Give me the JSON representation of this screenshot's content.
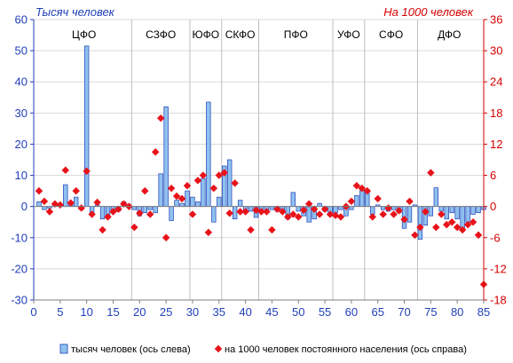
{
  "chart_data": {
    "type": "bar",
    "left_axis_label": "Тысяч человек",
    "right_axis_label": "На 1000 человек",
    "ylim_left": [
      -30,
      60
    ],
    "ylim_right": [
      -18,
      36
    ],
    "yticks_left": [
      "60",
      "50",
      "40",
      "30",
      "20",
      "10",
      "0",
      "-10",
      "-20",
      "-30"
    ],
    "yticks_right": [
      "36",
      "30",
      "24",
      "18",
      "12",
      "6",
      "0",
      "-6",
      "-12",
      "-18"
    ],
    "xticks": [
      "0",
      "5",
      "10",
      "15",
      "20",
      "25",
      "30",
      "35",
      "40",
      "45",
      "50",
      "55",
      "60",
      "65",
      "70",
      "75",
      "80",
      "85"
    ],
    "grid": true,
    "legend_position": "bottom",
    "regions": [
      {
        "name": "ЦФО",
        "start": 1,
        "end": 18
      },
      {
        "name": "СЗФО",
        "start": 19,
        "end": 29
      },
      {
        "name": "ЮФО",
        "start": 30,
        "end": 35
      },
      {
        "name": "СКФО",
        "start": 36,
        "end": 42
      },
      {
        "name": "ПФО",
        "start": 43,
        "end": 56
      },
      {
        "name": "УФО",
        "start": 57,
        "end": 62
      },
      {
        "name": "СФО",
        "start": 63,
        "end": 72
      },
      {
        "name": "ДФО",
        "start": 73,
        "end": 84
      }
    ],
    "series": [
      {
        "name": "тысяч человек (ось слева)",
        "type": "bar",
        "axis": "left",
        "color": "#8fc1ef",
        "x": [
          1,
          2,
          3,
          4,
          5,
          6,
          7,
          8,
          9,
          10,
          11,
          12,
          13,
          14,
          15,
          16,
          17,
          18,
          19,
          20,
          21,
          22,
          23,
          24,
          25,
          26,
          27,
          28,
          29,
          30,
          31,
          32,
          33,
          34,
          35,
          36,
          37,
          38,
          39,
          40,
          41,
          42,
          43,
          44,
          45,
          46,
          47,
          48,
          49,
          50,
          51,
          52,
          53,
          54,
          55,
          56,
          57,
          58,
          59,
          60,
          61,
          62,
          63,
          64,
          65,
          66,
          67,
          68,
          69,
          70,
          71,
          72,
          73,
          74,
          75,
          76,
          77,
          78,
          79,
          80,
          81,
          82,
          83,
          84,
          85
        ],
        "values": [
          1.5,
          -1,
          -0.5,
          1,
          0.5,
          7,
          0.5,
          3,
          -1,
          51.5,
          -2,
          0.5,
          -4,
          -3,
          -2,
          -1.5,
          1.5,
          0.5,
          -1,
          -3,
          -2,
          -1,
          -2,
          10.5,
          32,
          -4.5,
          2,
          1,
          5,
          3,
          1.5,
          9,
          33.5,
          -5,
          3,
          13,
          15,
          -4,
          2,
          -2,
          -1.5,
          -3.5,
          -1,
          -2,
          -1,
          -1.5,
          -1,
          -4,
          4.5,
          -1.5,
          -3,
          -5,
          -4,
          1,
          -1.5,
          -3,
          -2,
          -1,
          -3,
          -1,
          3.5,
          6,
          5,
          -2.5,
          0.5,
          -1,
          -1.5,
          -1,
          -2,
          -7,
          -5,
          0.5,
          -10.5,
          -6,
          -3,
          6,
          -1.5,
          -4,
          -2,
          -4,
          -7,
          -5,
          -2.5,
          -2,
          -1
        ]
      },
      {
        "name": "на 1000 человек постоянного населения (ось справа)",
        "type": "scatter",
        "axis": "right",
        "color": "#e8131a",
        "x": [
          1,
          2,
          3,
          4,
          5,
          6,
          7,
          8,
          9,
          10,
          11,
          12,
          13,
          14,
          15,
          16,
          17,
          18,
          19,
          20,
          21,
          22,
          23,
          24,
          25,
          26,
          27,
          28,
          29,
          30,
          31,
          32,
          33,
          34,
          35,
          36,
          37,
          38,
          39,
          40,
          41,
          42,
          43,
          44,
          45,
          46,
          47,
          48,
          49,
          50,
          51,
          52,
          53,
          54,
          55,
          56,
          57,
          58,
          59,
          60,
          61,
          62,
          63,
          64,
          65,
          66,
          67,
          68,
          69,
          70,
          71,
          72,
          73,
          74,
          75,
          76,
          77,
          78,
          79,
          80,
          81,
          82,
          83,
          84,
          85
        ],
        "values": [
          3,
          1,
          -1,
          0.5,
          0.3,
          7,
          0.7,
          3,
          -0.3,
          6.8,
          -1.5,
          0.8,
          -4.5,
          -2,
          -1,
          -0.5,
          0.5,
          0,
          -4,
          -1.3,
          3,
          -1.5,
          10.5,
          17,
          -6,
          3.5,
          2,
          1.5,
          4,
          -1.5,
          5,
          6,
          -5,
          3.5,
          6,
          6.5,
          -1.3,
          4.5,
          -1,
          -1,
          -4.5,
          -0.7,
          -1,
          -1,
          -4.5,
          -0.5,
          -1,
          -2,
          -1.5,
          -2,
          -0.7,
          0.5,
          -0.5,
          -1.5,
          -0.5,
          -1.5,
          -1.7,
          -2,
          0,
          1,
          4,
          3.5,
          3,
          -2,
          1.5,
          -1.5,
          -0.3,
          -1.5,
          -0.8,
          -2.5,
          1,
          -5.5,
          -4,
          -1,
          6.5,
          -4,
          -1.5,
          -3.5,
          -3,
          -4,
          -4.5,
          -3.5,
          -3,
          -5.5,
          -15
        ]
      }
    ]
  }
}
